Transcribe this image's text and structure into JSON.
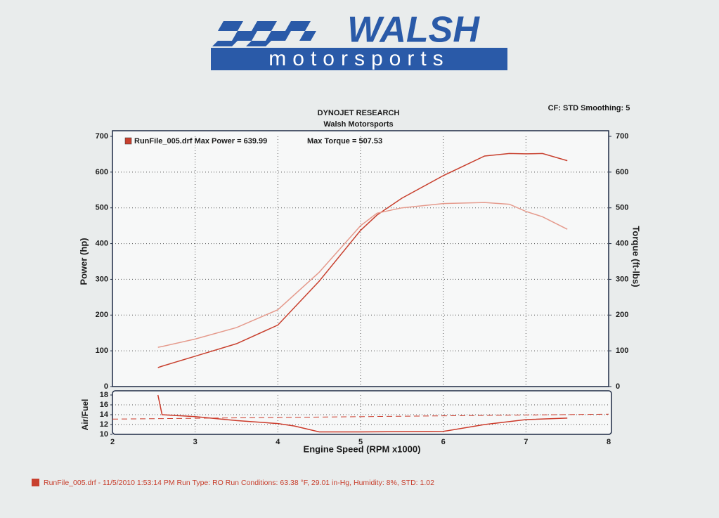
{
  "logo": {
    "brand": "WALSH",
    "sub": "motorsports"
  },
  "footer": "RunFile_005.drf - 11/5/2010 1:53:14 PM  Run Type: RO  Run Conditions: 63.38 °F, 29.01 in-Hg,  Humidity:  8%, STD: 1.02",
  "chart_data": [
    {
      "type": "line",
      "title": "DYNOJET RESEARCH",
      "subtitle": "Walsh Motorsports",
      "annotation": "CF: STD  Smoothing: 5",
      "ylabel": "Power (hp)",
      "y2label": "Torque (ft-lbs)",
      "x": [
        2.55,
        2.6,
        3.0,
        3.5,
        4.0,
        4.5,
        5.0,
        5.2,
        5.5,
        6.0,
        6.5,
        6.8,
        7.0,
        7.2,
        7.5
      ],
      "xlim": [
        2,
        8
      ],
      "ylim": [
        0,
        700
      ],
      "yticks": [
        0,
        100,
        200,
        300,
        400,
        500,
        600,
        700
      ],
      "y2lim": [
        0,
        700
      ],
      "y2ticks": [
        0,
        100,
        200,
        300,
        400,
        500,
        600,
        700
      ],
      "grid": true,
      "series": [
        {
          "name": "RunFile_005.drf Max Power = 639.99",
          "color": "#c8402e",
          "values": [
            53,
            57,
            85,
            120,
            172,
            295,
            437,
            480,
            527,
            590,
            645,
            652,
            651,
            652,
            632
          ]
        },
        {
          "name": "Max Torque = 507.53",
          "color": "#e59a8c",
          "axis": "y2",
          "values": [
            110,
            112,
            133,
            165,
            215,
            320,
            450,
            485,
            500,
            512,
            515,
            510,
            490,
            475,
            440
          ]
        }
      ]
    },
    {
      "type": "line",
      "ylabel": "Air/Fuel",
      "xlabel": "Engine Speed (RPM x1000)",
      "x": [
        2.55,
        2.6,
        3.0,
        3.5,
        4.0,
        4.2,
        4.5,
        5.0,
        6.0,
        6.5,
        7.0,
        7.5
      ],
      "values": [
        18,
        14,
        13.6,
        12.8,
        12.2,
        11.7,
        10.5,
        10.5,
        10.6,
        12.0,
        13.0,
        13.3
      ],
      "color": "#cc3a2a",
      "reference": {
        "x": [
          2,
          8
        ],
        "values": [
          13.1,
          14.1
        ]
      },
      "xlim": [
        2,
        8
      ],
      "xticks": [
        2,
        3,
        4,
        5,
        6,
        7,
        8
      ],
      "ylim": [
        10,
        18
      ],
      "yticks": [
        10,
        12,
        14,
        16,
        18
      ],
      "grid": true
    }
  ]
}
